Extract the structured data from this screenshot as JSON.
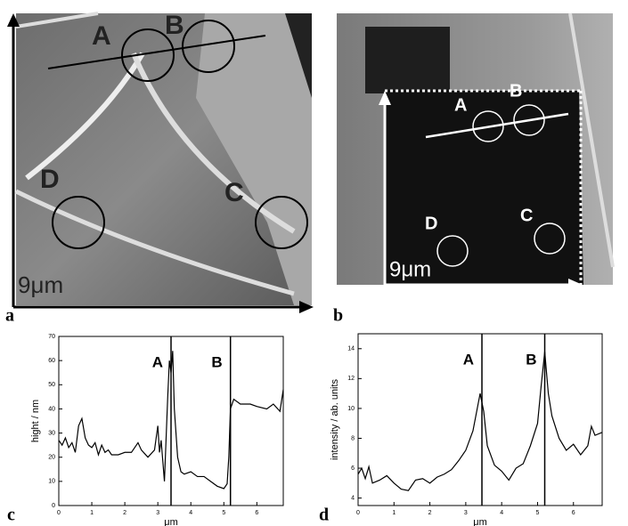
{
  "images": [
    {
      "label": "a",
      "markers": [
        "A",
        "B",
        "C",
        "D"
      ],
      "scale": "9μm"
    },
    {
      "label": "b",
      "markers": [
        "A",
        "B",
        "C",
        "D"
      ],
      "scale": "9μm"
    }
  ],
  "chart_data": [
    {
      "type": "line",
      "label": "c",
      "ylabel": "hight / nm",
      "xlabel": "μm",
      "color": "#000",
      "xlim": [
        0,
        6.8
      ],
      "xticks": [
        0,
        1,
        2,
        3,
        4,
        5,
        6
      ],
      "ylim": [
        0,
        70
      ],
      "yticks": [
        0,
        10,
        20,
        30,
        40,
        50,
        60,
        70
      ],
      "annotations": [
        {
          "text": "A",
          "x": 3.4
        },
        {
          "text": "B",
          "x": 5.2
        }
      ],
      "x": [
        0,
        0.1,
        0.2,
        0.3,
        0.4,
        0.5,
        0.6,
        0.7,
        0.8,
        0.9,
        1.0,
        1.1,
        1.2,
        1.3,
        1.4,
        1.5,
        1.6,
        1.8,
        2.0,
        2.2,
        2.4,
        2.5,
        2.7,
        2.9,
        3.0,
        3.05,
        3.1,
        3.2,
        3.3,
        3.35,
        3.4,
        3.45,
        3.5,
        3.6,
        3.7,
        3.8,
        4.0,
        4.2,
        4.4,
        4.6,
        4.8,
        5.0,
        5.1,
        5.15,
        5.2,
        5.3,
        5.5,
        5.8,
        6.0,
        6.3,
        6.5,
        6.7,
        6.8
      ],
      "values": [
        27,
        25,
        28,
        24,
        26,
        22,
        33,
        36,
        28,
        25,
        24,
        26,
        21,
        25,
        22,
        23,
        21,
        21,
        22,
        22,
        26,
        23,
        20,
        23,
        33,
        22,
        27,
        10,
        45,
        60,
        55,
        64,
        40,
        20,
        14,
        13,
        14,
        12,
        12,
        10,
        8,
        7,
        9,
        20,
        40,
        44,
        42,
        42,
        41,
        40,
        42,
        39,
        48
      ]
    },
    {
      "type": "line",
      "label": "d",
      "ylabel": "intensity / ab. units",
      "xlabel": "μm",
      "color": "#000",
      "xlim": [
        0,
        6.8
      ],
      "xticks": [
        0,
        1,
        2,
        3,
        4,
        5,
        6
      ],
      "ylim": [
        3.5,
        15
      ],
      "yticks": [
        4,
        6,
        8,
        10,
        12,
        14
      ],
      "annotations": [
        {
          "text": "A",
          "x": 3.45
        },
        {
          "text": "B",
          "x": 5.2
        }
      ],
      "x": [
        0,
        0.1,
        0.2,
        0.3,
        0.4,
        0.6,
        0.8,
        1.0,
        1.2,
        1.4,
        1.6,
        1.8,
        2.0,
        2.2,
        2.4,
        2.6,
        2.8,
        3.0,
        3.2,
        3.4,
        3.5,
        3.6,
        3.8,
        4.0,
        4.2,
        4.4,
        4.6,
        4.8,
        5.0,
        5.1,
        5.2,
        5.3,
        5.4,
        5.6,
        5.8,
        6.0,
        6.2,
        6.4,
        6.5,
        6.6,
        6.8
      ],
      "values": [
        5.6,
        6,
        5.3,
        6.1,
        5,
        5.2,
        5.5,
        5,
        4.6,
        4.5,
        5.2,
        5.3,
        5,
        5.4,
        5.6,
        5.9,
        6.5,
        7.2,
        8.5,
        11,
        9.8,
        7.5,
        6.2,
        5.8,
        5.2,
        6,
        6.3,
        7.5,
        9,
        11.5,
        13.8,
        11,
        9.5,
        8,
        7.2,
        7.6,
        6.9,
        7.5,
        8.8,
        8.2,
        8.4
      ]
    }
  ]
}
